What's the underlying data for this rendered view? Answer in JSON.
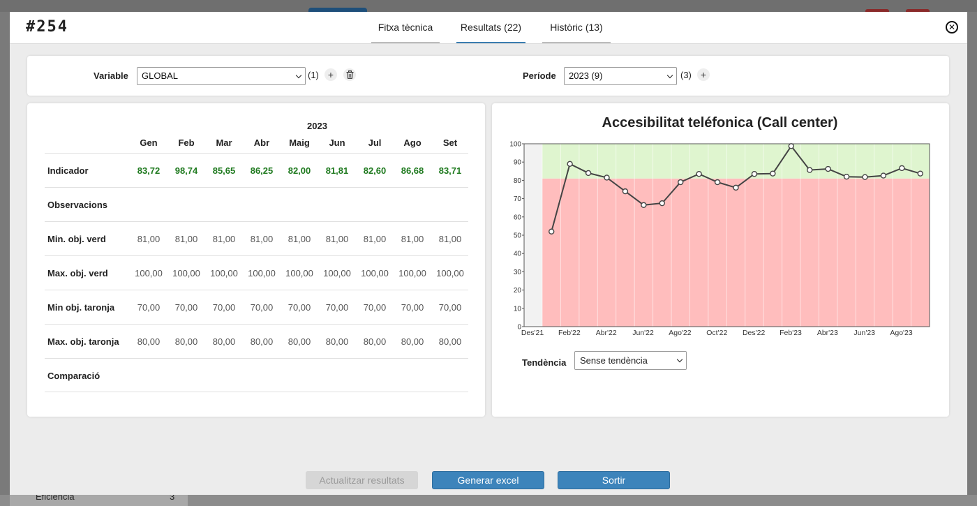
{
  "background": {
    "bottom_row_label": "Eficiència",
    "bottom_row_value": "3"
  },
  "modal": {
    "id": "#254",
    "close_icon": "close-circle-icon",
    "tabs": [
      {
        "label": "Fitxa tècnica",
        "active": false
      },
      {
        "label": "Resultats (22)",
        "active": true
      },
      {
        "label": "Històric (13)",
        "active": false
      }
    ]
  },
  "filters": {
    "variable_label": "Variable",
    "variable_value": "GLOBAL",
    "variable_count": "(1)",
    "periode_label": "Període",
    "periode_value": "2023 (9)",
    "periode_count": "(3)",
    "plus_symbol": "+",
    "delete_icon": "trash-icon"
  },
  "table": {
    "year": "2023",
    "months": [
      "Gen",
      "Feb",
      "Mar",
      "Abr",
      "Maig",
      "Jun",
      "Jul",
      "Ago",
      "Set"
    ],
    "rows": [
      {
        "label": "Indicador",
        "values": [
          "83,72",
          "98,74",
          "85,65",
          "86,25",
          "82,00",
          "81,81",
          "82,60",
          "86,68",
          "83,71"
        ],
        "highlight": true
      },
      {
        "label": "Observacions",
        "values": []
      },
      {
        "label": "Min. obj. verd",
        "values": [
          "81,00",
          "81,00",
          "81,00",
          "81,00",
          "81,00",
          "81,00",
          "81,00",
          "81,00",
          "81,00"
        ]
      },
      {
        "label": "Max. obj. verd",
        "values": [
          "100,00",
          "100,00",
          "100,00",
          "100,00",
          "100,00",
          "100,00",
          "100,00",
          "100,00",
          "100,00"
        ]
      },
      {
        "label": "Min obj. taronja",
        "values": [
          "70,00",
          "70,00",
          "70,00",
          "70,00",
          "70,00",
          "70,00",
          "70,00",
          "70,00",
          "70,00"
        ]
      },
      {
        "label": "Max. obj. taronja",
        "values": [
          "80,00",
          "80,00",
          "80,00",
          "80,00",
          "80,00",
          "80,00",
          "80,00",
          "80,00",
          "80,00"
        ]
      },
      {
        "label": "Comparació",
        "values": []
      }
    ],
    "highlight_color": "#1f7a1f"
  },
  "chart_data": {
    "type": "line",
    "title": "Accesibilitat teléfonica (Call center)",
    "x_tick_labels": [
      "Des'21",
      "Feb'22",
      "Abr'22",
      "Jun'22",
      "Ago'22",
      "Oct'22",
      "Des'22",
      "Feb'23",
      "Abr'23",
      "Jun'23",
      "Ago'23"
    ],
    "x": [
      "Gen'22",
      "Feb'22",
      "Mar'22",
      "Abr'22",
      "Mai'22",
      "Jun'22",
      "Jul'22",
      "Ago'22",
      "Set'22",
      "Oct'22",
      "Nov'22",
      "Des'22",
      "Gen'23",
      "Feb'23",
      "Mar'23",
      "Abr'23",
      "Mai'23",
      "Jun'23",
      "Jul'23",
      "Ago'23",
      "Set'23"
    ],
    "series": [
      {
        "values": [
          52,
          89,
          84,
          81.5,
          74,
          66.5,
          67.5,
          79,
          83.5,
          79,
          76,
          83.5,
          83.72,
          98.74,
          85.65,
          86.25,
          82.0,
          81.81,
          82.6,
          86.68,
          83.71
        ]
      }
    ],
    "ylim": [
      0,
      100
    ],
    "y_ticks": [
      0,
      10,
      20,
      30,
      40,
      50,
      60,
      70,
      80,
      90,
      100
    ],
    "bands": [
      {
        "from": 0,
        "to": 81,
        "color": "#ffbdbd"
      },
      {
        "from": 81,
        "to": 100,
        "color": "#dff5cf"
      }
    ],
    "colors": {
      "line": "#444444",
      "marker_fill": "#ffffff",
      "empty_region": "#f2f2f2"
    },
    "grid": true
  },
  "trend": {
    "label": "Tendència",
    "value": "Sense tendència"
  },
  "footer": {
    "update_label": "Actualitzar resultats",
    "excel_label": "Generar excel",
    "exit_label": "Sortir",
    "primary_color": "#3d84bb"
  }
}
